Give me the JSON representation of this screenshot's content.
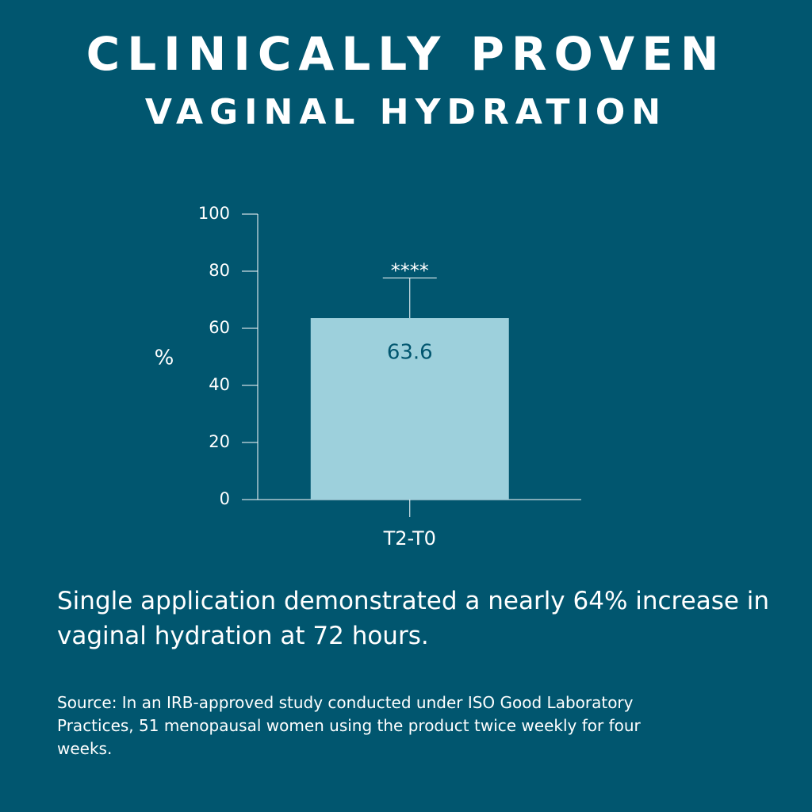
{
  "chart_data": {
    "type": "bar",
    "title": "CLINICALLY PROVEN",
    "subtitle": "VAGINAL HYDRATION",
    "ylabel": "%",
    "categories": [
      "T2-T0"
    ],
    "values": [
      63.6
    ],
    "errors": [
      14
    ],
    "annotation": "****",
    "color": "#9dd0dc",
    "ylim": [
      0,
      100
    ],
    "yticks": [
      0,
      20,
      40,
      60,
      80,
      100
    ],
    "grid": false,
    "caption": "Single application demonstrated a nearly 64% increase in vaginal hydration at 72 hours.",
    "source": "Source: In an IRB-approved study conducted under ISO Good Laboratory Practices, 51 menopausal women using the product twice weekly for four weeks."
  }
}
